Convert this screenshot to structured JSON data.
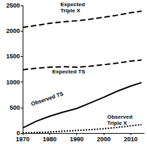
{
  "chart_data": {
    "type": "line",
    "x": [
      1970,
      1975,
      1980,
      1985,
      1990,
      1995,
      2000,
      2005,
      2010,
      2014
    ],
    "series": [
      {
        "name": "Expected\nTriple X",
        "color": "#000000",
        "line_style": "dashed",
        "values": [
          2070,
          2110,
          2150,
          2180,
          2200,
          2230,
          2270,
          2310,
          2360,
          2390
        ]
      },
      {
        "name": "Expected TS",
        "color": "#000000",
        "line_style": "dashed",
        "values": [
          1240,
          1270,
          1290,
          1300,
          1290,
          1310,
          1340,
          1370,
          1410,
          1430
        ]
      },
      {
        "name": "Observed TS",
        "color": "#000000",
        "line_style": "solid",
        "values": [
          100,
          230,
          330,
          410,
          480,
          590,
          700,
          820,
          920,
          990
        ]
      },
      {
        "name": "Observed\nTriple X",
        "color": "#000000",
        "line_style": "dotted",
        "values": [
          0,
          10,
          20,
          35,
          50,
          65,
          85,
          110,
          140,
          165
        ]
      }
    ],
    "xlim": [
      1970,
      2015
    ],
    "xticks": [
      1970,
      1980,
      1990,
      2000,
      2010
    ],
    "ylim": [
      0,
      2500
    ],
    "yticks": [
      0,
      500,
      1000,
      1500,
      2000,
      2500
    ],
    "grid": false
  }
}
